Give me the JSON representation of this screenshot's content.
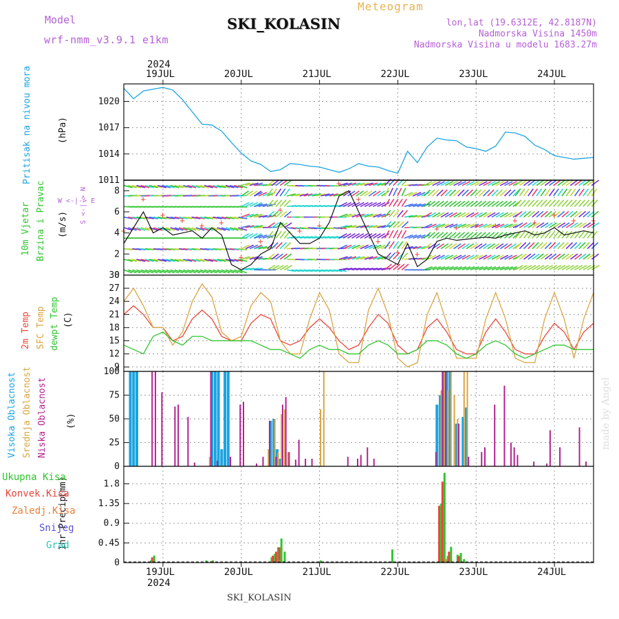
{
  "header": {
    "model_label": "Model",
    "model_name": "wrf-nmm_v3.9.1 e1km",
    "title": "SKI_KOLASIN",
    "meteogram_label": "Meteogram",
    "lonlat": "lon,lat (19.6312E, 42.8187N)",
    "elevation": "Nadmorska Visina 1450m",
    "model_elevation": "Nadmorska Visina u modelu 1683.27m",
    "footer_station": "SKI_KOLASIN",
    "watermark": "made by Angel"
  },
  "colors": {
    "pressure": "#1ba3e0",
    "temp2m": "#e8463a",
    "sfc": "#d9a441",
    "dewpt": "#2ec52e",
    "high": "#1ba3e0",
    "mid": "#d9a441",
    "low": "#b31f8f",
    "total": "#2ec52e",
    "conv": "#e8463a",
    "frozen": "#e8803a",
    "snow": "#5b4fd6",
    "grad": "#2ec4b6",
    "model": "#b55fd6",
    "meteogram": "#e6b450"
  },
  "time_axis": {
    "year": "2024",
    "days": [
      "19JUL",
      "20JUL",
      "21JUL",
      "22JUL",
      "23JUL",
      "24JUL"
    ],
    "start": "2024-07-18 12:00",
    "hours_shown": 144
  },
  "panels": {
    "pressure": {
      "label": "Pritisak na nivou mora",
      "unit": "(hPa)",
      "ticks": [
        "1011",
        "1014",
        "1017",
        "1020"
      ]
    },
    "wind": {
      "label1": "10m Vjetar",
      "label2": "Brzina i Pravac",
      "unit": "(m/s)",
      "ticks": [
        "0",
        "2",
        "4",
        "6",
        "8"
      ],
      "compass": "W <-|-> E",
      "compass_ns": "S <-|-> N"
    },
    "temp": {
      "label1": "2m Temp",
      "label2": "SFC Temp",
      "label3": "dewpt Temp",
      "unit": "(C)",
      "ticks": [
        "9",
        "12",
        "15",
        "18",
        "21",
        "24",
        "27",
        "30"
      ]
    },
    "cloud": {
      "label1": "Visoka Oblacnost",
      "label2": "Srednja Oblacnost",
      "label3": "Niska Oblacnost",
      "unit": "(%)",
      "ticks": [
        "0",
        "25",
        "50",
        "75",
        "100"
      ]
    },
    "precip": {
      "label": "1hr Precip",
      "unit": "(mm)",
      "ticks": [
        "0",
        "0.45",
        "0.9",
        "1.35",
        "1.8"
      ],
      "legend": [
        "Ukupna Kisa",
        "Konvek.Kisa",
        "Zaledj.Kisa",
        "Snijeg",
        "Grad"
      ]
    }
  },
  "chart_data": [
    {
      "type": "line",
      "title": "",
      "ylabel": "Pritisak na nivou mora (hPa)",
      "ylim": [
        1011,
        1022
      ],
      "x_hours_from_start": [
        0,
        3,
        6,
        9,
        12,
        15,
        18,
        21,
        24,
        27,
        30,
        33,
        36,
        39,
        42,
        45,
        48,
        51,
        54,
        57,
        60,
        63,
        66,
        69,
        72,
        75,
        78,
        81,
        84,
        87,
        90,
        93,
        96,
        99,
        102,
        105,
        108,
        111,
        114,
        117,
        120,
        123,
        126,
        129,
        132,
        135,
        138,
        141,
        144
      ],
      "series": [
        {
          "values": [
            1021.5,
            1020.3,
            1021.2,
            1021.4,
            1021.6,
            1021.3,
            1020.2,
            1018.8,
            1017.4,
            1017.3,
            1016.6,
            1015.3,
            1014.1,
            1013.2,
            1012.8,
            1012.0,
            1012.2,
            1012.9,
            1012.8,
            1012.6,
            1012.5,
            1012.2,
            1011.9,
            1012.3,
            1012.9,
            1012.6,
            1012.5,
            1012.1,
            1011.8,
            1014.3,
            1013.0,
            1014.8,
            1015.8,
            1015.6,
            1015.5,
            1014.8,
            1014.6,
            1014.3,
            1014.9,
            1016.5,
            1016.4,
            1016.0,
            1015.0,
            1014.5,
            1013.8,
            1013.6,
            1013.4,
            1013.5,
            1013.6
          ]
        }
      ]
    },
    {
      "type": "line",
      "title": "",
      "ylabel": "10m Vjetar Brzina i Pravac (m/s)",
      "ylim": [
        0,
        9
      ],
      "x_hours_from_start": [
        0,
        3,
        6,
        9,
        12,
        15,
        18,
        21,
        24,
        27,
        30,
        33,
        36,
        39,
        42,
        45,
        48,
        51,
        54,
        57,
        60,
        63,
        66,
        69,
        72,
        75,
        78,
        81,
        84,
        87,
        90,
        93,
        96,
        99,
        102,
        105,
        108,
        111,
        114,
        117,
        120,
        123,
        126,
        129,
        132,
        135,
        138,
        141,
        144
      ],
      "series": [
        {
          "name": "10m wind speed",
          "values": [
            3.0,
            4.5,
            6.0,
            4.0,
            4.5,
            3.8,
            4.0,
            4.2,
            3.5,
            4.5,
            3.8,
            1.0,
            0.5,
            1.0,
            2.0,
            2.5,
            5.0,
            4.0,
            3.0,
            3.0,
            3.5,
            5.0,
            7.5,
            8.0,
            6.0,
            4.0,
            2.0,
            1.5,
            1.0,
            3.0,
            0.8,
            1.5,
            3.2,
            3.5,
            3.3,
            3.4,
            3.5,
            3.6,
            3.5,
            3.8,
            4.0,
            4.2,
            3.8,
            4.0,
            4.5,
            3.8,
            4.0,
            4.2,
            4.0
          ]
        }
      ]
    },
    {
      "type": "line",
      "title": "",
      "ylabel": "Temp (C)",
      "ylim": [
        8,
        30
      ],
      "x_hours_from_start": [
        0,
        3,
        6,
        9,
        12,
        15,
        18,
        21,
        24,
        27,
        30,
        33,
        36,
        39,
        42,
        45,
        48,
        51,
        54,
        57,
        60,
        63,
        66,
        69,
        72,
        75,
        78,
        81,
        84,
        87,
        90,
        93,
        96,
        99,
        102,
        105,
        108,
        111,
        114,
        117,
        120,
        123,
        126,
        129,
        132,
        135,
        138,
        141,
        144
      ],
      "series": [
        {
          "name": "2m Temp",
          "values": [
            21,
            23,
            21,
            18,
            18,
            15,
            16,
            20,
            22,
            20,
            16,
            15,
            15,
            19,
            21,
            20,
            15,
            14,
            15,
            18,
            20,
            18,
            15,
            13,
            14,
            18,
            21,
            19,
            14,
            12,
            13,
            18,
            20,
            17,
            13,
            12,
            12,
            17,
            20,
            17,
            13,
            12,
            12,
            16,
            19,
            17,
            13,
            17,
            19
          ]
        },
        {
          "name": "SFC Temp",
          "values": [
            24,
            27,
            23,
            18,
            18,
            14,
            17,
            24,
            28,
            25,
            17,
            15,
            16,
            23,
            26,
            24,
            15,
            12,
            12,
            20,
            26,
            22,
            12,
            10,
            10,
            22,
            27,
            21,
            11,
            9,
            10,
            21,
            26,
            19,
            11,
            11,
            11,
            20,
            26,
            20,
            11,
            10,
            10,
            20,
            26,
            20,
            11,
            20,
            26
          ]
        },
        {
          "name": "dewpt Temp",
          "values": [
            14,
            13,
            12,
            16,
            17,
            15,
            14,
            16,
            16,
            15,
            15,
            15,
            15,
            15,
            14,
            13,
            13,
            12,
            11,
            13,
            14,
            13,
            13,
            12,
            12,
            14,
            15,
            14,
            12,
            12,
            13,
            15,
            15,
            14,
            12,
            11,
            12,
            14,
            15,
            14,
            12,
            11,
            12,
            13,
            14,
            14,
            13,
            13,
            13
          ]
        }
      ]
    },
    {
      "type": "bar",
      "title": "",
      "ylabel": "Oblacnost (%)",
      "ylim": [
        0,
        100
      ],
      "series": [
        {
          "name": "Visoka Oblacnost",
          "points": [
            [
              2,
              100
            ],
            [
              3,
              100
            ],
            [
              4,
              100
            ],
            [
              27,
              100
            ],
            [
              28,
              100
            ],
            [
              29,
              100
            ],
            [
              30,
              18
            ],
            [
              31,
              100
            ],
            [
              32,
              100
            ],
            [
              45,
              48
            ],
            [
              46,
              50
            ],
            [
              47,
              18
            ],
            [
              48,
              8
            ],
            [
              96,
              65
            ],
            [
              97,
              75
            ],
            [
              98,
              100
            ],
            [
              99,
              100
            ],
            [
              100,
              100
            ],
            [
              102,
              45
            ],
            [
              104,
              52
            ],
            [
              105,
              62
            ]
          ]
        },
        {
          "name": "Srednja Oblacnost",
          "points": [
            [
              26,
              10
            ],
            [
              44,
              18
            ],
            [
              46,
              50
            ],
            [
              47,
              15
            ],
            [
              48,
              55
            ],
            [
              49,
              60
            ],
            [
              50,
              15
            ],
            [
              60,
              60
            ],
            [
              61,
              100
            ],
            [
              97,
              80
            ],
            [
              98,
              100
            ],
            [
              99,
              80
            ],
            [
              100,
              100
            ],
            [
              101,
              75
            ],
            [
              102,
              50
            ],
            [
              104,
              100
            ],
            [
              105,
              100
            ]
          ]
        },
        {
          "name": "Niska Oblacnost",
          "points": [
            [
              9,
              100
            ],
            [
              10,
              100
            ],
            [
              12,
              78
            ],
            [
              16,
              63
            ],
            [
              17,
              65
            ],
            [
              20,
              52
            ],
            [
              22,
              4
            ],
            [
              27,
              100
            ],
            [
              29,
              6
            ],
            [
              33,
              10
            ],
            [
              36,
              65
            ],
            [
              37,
              68
            ],
            [
              41,
              3
            ],
            [
              43,
              10
            ],
            [
              45,
              48
            ],
            [
              47,
              10
            ],
            [
              49,
              65
            ],
            [
              50,
              73
            ],
            [
              51,
              15
            ],
            [
              53,
              7
            ],
            [
              54,
              28
            ],
            [
              56,
              8
            ],
            [
              58,
              8
            ],
            [
              69,
              10
            ],
            [
              72,
              8
            ],
            [
              73,
              12
            ],
            [
              75,
              20
            ],
            [
              77,
              8
            ],
            [
              96,
              15
            ],
            [
              98,
              100
            ],
            [
              99,
              100
            ],
            [
              103,
              45
            ],
            [
              106,
              10
            ],
            [
              110,
              15
            ],
            [
              111,
              20
            ],
            [
              114,
              65
            ],
            [
              117,
              85
            ],
            [
              119,
              25
            ],
            [
              120,
              20
            ],
            [
              121,
              12
            ],
            [
              126,
              5
            ],
            [
              130,
              3
            ],
            [
              131,
              38
            ],
            [
              134,
              20
            ],
            [
              140,
              41
            ],
            [
              142,
              5
            ]
          ]
        }
      ]
    },
    {
      "type": "bar",
      "title": "",
      "ylabel": "1hr Precip (mm)",
      "ylim": [
        0,
        2.2
      ],
      "series": [
        {
          "name": "Ukupna Kisa",
          "points": [
            [
              8,
              0.05
            ],
            [
              9,
              0.16
            ],
            [
              25,
              0.05
            ],
            [
              27,
              0.05
            ],
            [
              45,
              0.12
            ],
            [
              46,
              0.2
            ],
            [
              47,
              0.35
            ],
            [
              48,
              0.55
            ],
            [
              49,
              0.25
            ],
            [
              60,
              0.05
            ],
            [
              81,
              0.02
            ],
            [
              82,
              0.3
            ],
            [
              97,
              1.35
            ],
            [
              98,
              2.05
            ],
            [
              99,
              0.15
            ],
            [
              100,
              0.36
            ],
            [
              102,
              0.18
            ],
            [
              103,
              0.22
            ],
            [
              104,
              0.08
            ]
          ]
        },
        {
          "name": "Konvek.Kisa",
          "points": [
            [
              9,
              0.12
            ],
            [
              46,
              0.16
            ],
            [
              47,
              0.25
            ],
            [
              48,
              0.35
            ],
            [
              97,
              1.3
            ],
            [
              98,
              1.85
            ],
            [
              100,
              0.25
            ],
            [
              103,
              0.15
            ]
          ]
        },
        {
          "name": "Zaledj.Kisa",
          "points": [
            [
              26,
              0.03
            ],
            [
              47,
              0.05
            ],
            [
              98,
              0.08
            ]
          ]
        }
      ]
    }
  ]
}
